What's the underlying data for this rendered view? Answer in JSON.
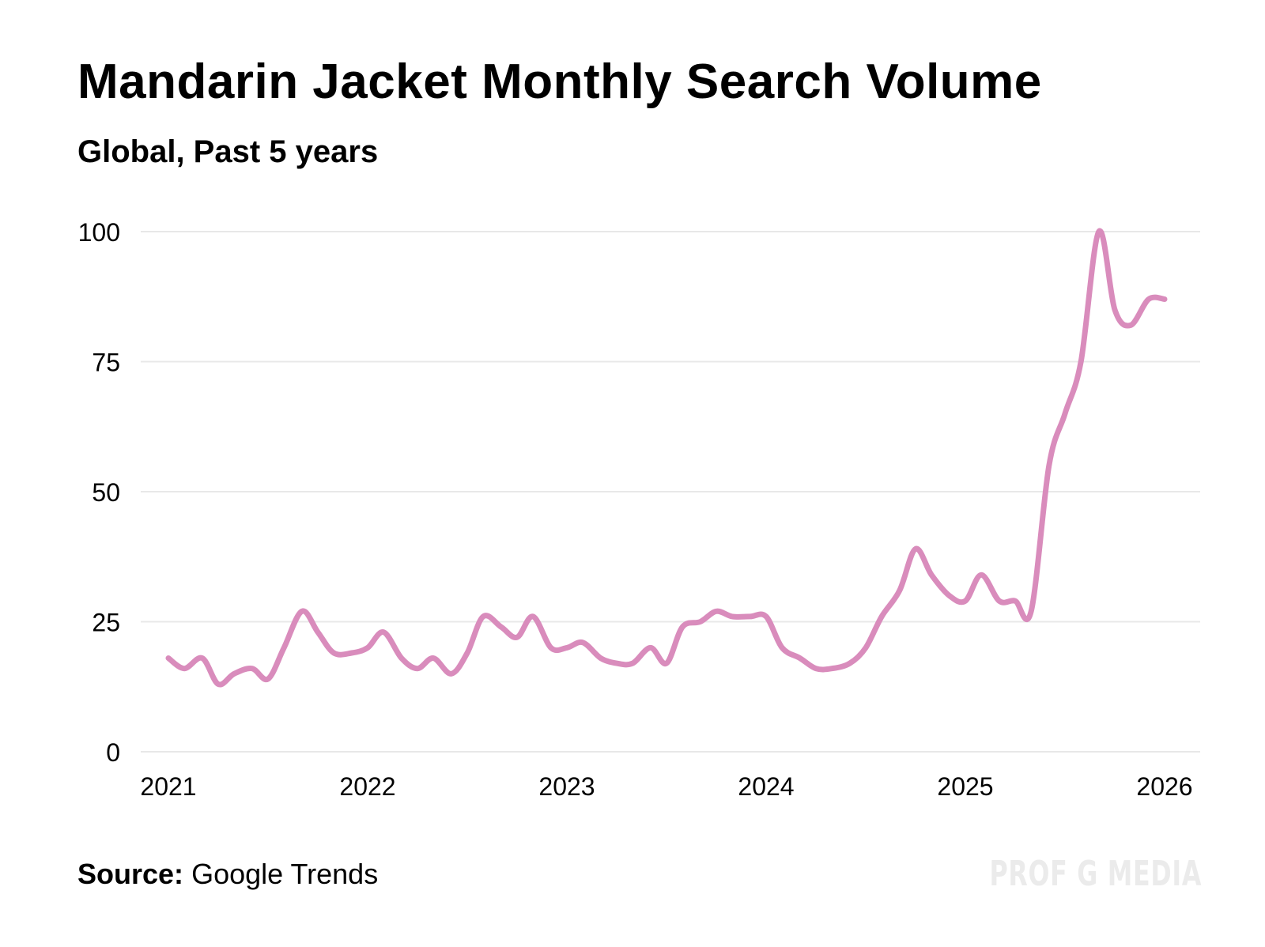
{
  "header": {
    "title": "Mandarin Jacket Monthly Search Volume",
    "subtitle": "Global, Past 5 years"
  },
  "footer": {
    "source_label": "Source:",
    "source_value": "Google Trends",
    "watermark": "PROF G MEDIA"
  },
  "colors": {
    "line": "#d98cbc",
    "grid": "#e8e8e8",
    "text": "#000000",
    "watermark": "#ebebeb"
  },
  "chart_data": {
    "type": "line",
    "title": "Mandarin Jacket Monthly Search Volume",
    "subtitle": "Global, Past 5 years",
    "xlabel": "",
    "ylabel": "",
    "xlim": [
      2021,
      2026
    ],
    "ylim": [
      0,
      100
    ],
    "yticks": [
      0,
      25,
      50,
      75,
      100
    ],
    "xticks": [
      2021,
      2022,
      2023,
      2024,
      2025,
      2026
    ],
    "ytick_labels": [
      "0",
      "25",
      "50",
      "75",
      "100"
    ],
    "xtick_labels": [
      "2021",
      "2022",
      "2023",
      "2024",
      "2025",
      "2026"
    ],
    "grid": true,
    "legend": "none",
    "series": [
      {
        "name": "Search Volume",
        "x": [
          2021.0,
          2021.08,
          2021.17,
          2021.25,
          2021.33,
          2021.42,
          2021.5,
          2021.58,
          2021.67,
          2021.75,
          2021.83,
          2021.92,
          2022.0,
          2022.08,
          2022.17,
          2022.25,
          2022.33,
          2022.42,
          2022.5,
          2022.58,
          2022.67,
          2022.75,
          2022.83,
          2022.92,
          2023.0,
          2023.08,
          2023.17,
          2023.25,
          2023.33,
          2023.42,
          2023.5,
          2023.58,
          2023.67,
          2023.75,
          2023.83,
          2023.92,
          2024.0,
          2024.08,
          2024.17,
          2024.25,
          2024.33,
          2024.42,
          2024.5,
          2024.58,
          2024.67,
          2024.75,
          2024.83,
          2024.92,
          2025.0,
          2025.08,
          2025.17,
          2025.25,
          2025.33,
          2025.42,
          2025.5,
          2025.58,
          2025.67,
          2025.75,
          2025.83,
          2025.92,
          2026.0
        ],
        "values": [
          18,
          16,
          18,
          13,
          15,
          16,
          14,
          20,
          27,
          23,
          19,
          19,
          20,
          23,
          18,
          16,
          18,
          15,
          19,
          26,
          24,
          22,
          26,
          20,
          20,
          21,
          18,
          17,
          17,
          20,
          17,
          24,
          25,
          27,
          26,
          26,
          26,
          20,
          18,
          16,
          16,
          17,
          20,
          26,
          31,
          39,
          34,
          30,
          29,
          34,
          29,
          29,
          27,
          55,
          65,
          75,
          100,
          85,
          82,
          87,
          87
        ]
      }
    ]
  }
}
